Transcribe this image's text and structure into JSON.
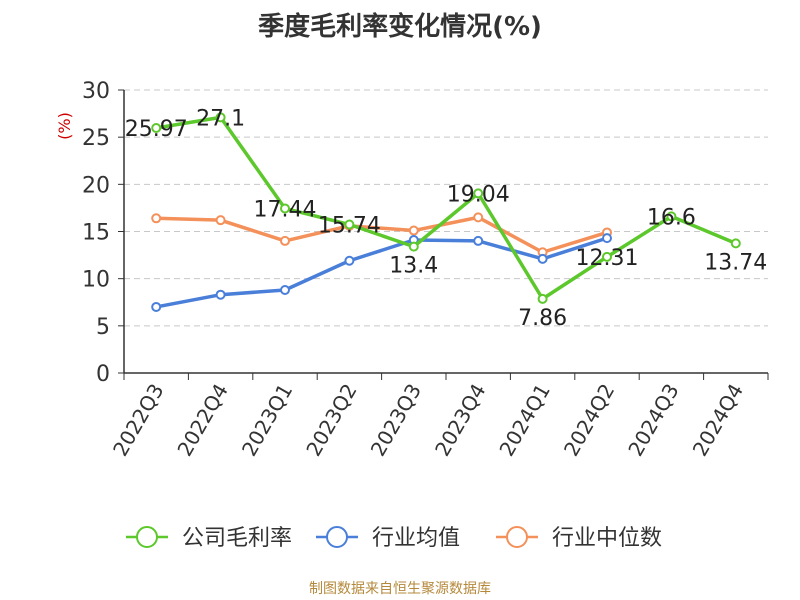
{
  "title": "季度毛利率变化情况(%)",
  "source_note": "制图数据来自恒生聚源数据库",
  "chart_data": {
    "type": "line",
    "title": "季度毛利率变化情况(%)",
    "ylabel": "(%)",
    "ylim": [
      0,
      30
    ],
    "yticks": [
      0,
      5,
      10,
      15,
      20,
      25,
      30
    ],
    "grid": true,
    "legend_position": "bottom",
    "categories": [
      "2022Q3",
      "2022Q4",
      "2023Q1",
      "2023Q2",
      "2023Q3",
      "2023Q4",
      "2024Q1",
      "2024Q2",
      "2024Q3",
      "2024Q4"
    ],
    "series": [
      {
        "name": "公司毛利率",
        "color": "#5cc82c",
        "values": [
          25.97,
          27.1,
          17.44,
          15.74,
          13.4,
          19.04,
          7.86,
          12.31,
          16.6,
          13.74
        ],
        "labels": [
          "25.97",
          "27.1",
          "17.44",
          "15.74",
          "13.4",
          "19.04",
          "7.86",
          "12.31",
          "16.6",
          "13.74"
        ]
      },
      {
        "name": "行业均值",
        "color": "#4a7fd9",
        "values": [
          7.0,
          8.3,
          8.8,
          11.9,
          14.1,
          14.0,
          12.1,
          14.3,
          null,
          null
        ]
      },
      {
        "name": "行业中位数",
        "color": "#f4905a",
        "values": [
          16.4,
          16.2,
          14.0,
          15.6,
          15.1,
          16.5,
          12.8,
          14.9,
          null,
          null
        ]
      }
    ]
  }
}
